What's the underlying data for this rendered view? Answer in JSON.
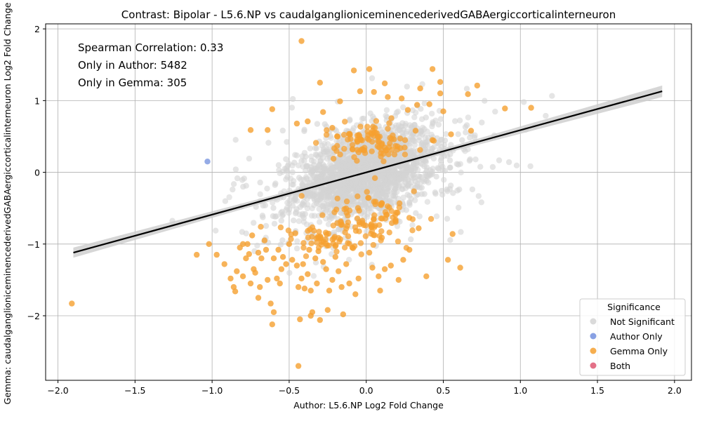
{
  "chart_data": {
    "type": "scatter",
    "title": "Contrast: Bipolar - L5.6.NP vs caudalganglioniceminencederivedGABAergiccorticalinterneuron",
    "xlabel": "Author: L5.6.NP Log2 Fold Change",
    "ylabel": "Gemma: caudalganglioniceminencederivedGABAergiccorticalinterneuron Log2 Fold Change",
    "xlim": [
      -2.08,
      2.11
    ],
    "ylim": [
      -2.9,
      2.07
    ],
    "x_ticks": [
      -2.0,
      -1.5,
      -1.0,
      -0.5,
      0.0,
      0.5,
      1.0,
      1.5,
      2.0
    ],
    "x_tick_labels": [
      "−2.0",
      "−1.5",
      "−1.0",
      "−0.5",
      "0.0",
      "0.5",
      "1.0",
      "1.5",
      "2.0"
    ],
    "y_ticks": [
      -2,
      -1,
      0,
      1,
      2
    ],
    "y_tick_labels": [
      "−2",
      "−1",
      "0",
      "1",
      "2"
    ],
    "grid": true,
    "annotations": [
      "Spearman Correlation: 0.33",
      "Only in Author: 5482",
      "Only in Gemma: 305"
    ],
    "legend": {
      "title": "Significance",
      "placement": "lower-right",
      "entries": [
        {
          "label": "Not Significant",
          "color": "#d3d3d3"
        },
        {
          "label": "Author Only",
          "color": "#7b96e0"
        },
        {
          "label": "Gemma Only",
          "color": "#f5a030"
        },
        {
          "label": "Both",
          "color": "#e0607a"
        }
      ]
    },
    "regression_line": {
      "x": [
        -1.9,
        1.92
      ],
      "y": [
        -1.12,
        1.13
      ],
      "color": "#000000",
      "band_color": "#cccccc"
    },
    "series": [
      {
        "name": "Author Only",
        "color": "#7b96e0",
        "points": [
          [
            -1.03,
            0.15
          ]
        ]
      },
      {
        "name": "Gemma Only",
        "color": "#f5a030",
        "points": [
          [
            -1.91,
            -1.83
          ],
          [
            -1.1,
            -1.15
          ],
          [
            -1.02,
            -1.0
          ],
          [
            -0.97,
            -1.15
          ],
          [
            -0.92,
            -1.28
          ],
          [
            -0.88,
            -1.48
          ],
          [
            -0.86,
            -1.6
          ],
          [
            -0.85,
            -1.66
          ],
          [
            -0.84,
            -1.38
          ],
          [
            -0.82,
            -1.05
          ],
          [
            -0.8,
            -1.0
          ],
          [
            -0.8,
            -1.45
          ],
          [
            -0.78,
            -1.2
          ],
          [
            -0.77,
            -1.0
          ],
          [
            -0.76,
            -1.14
          ],
          [
            -0.75,
            -1.55
          ],
          [
            -0.74,
            -0.88
          ],
          [
            -0.73,
            -1.35
          ],
          [
            -0.72,
            -1.4
          ],
          [
            -0.7,
            -1.12
          ],
          [
            -0.7,
            -1.75
          ],
          [
            -0.69,
            -1.6
          ],
          [
            -0.68,
            -1.2
          ],
          [
            -0.66,
            -0.95
          ],
          [
            -0.65,
            -1.08
          ],
          [
            -0.64,
            -1.5
          ],
          [
            -0.62,
            -1.83
          ],
          [
            -0.61,
            -2.12
          ],
          [
            -0.6,
            -1.95
          ],
          [
            -0.6,
            -1.2
          ],
          [
            -0.58,
            -1.48
          ],
          [
            -0.57,
            -1.08
          ],
          [
            -0.56,
            -1.55
          ],
          [
            -0.55,
            -1.35
          ],
          [
            -0.54,
            -1.18
          ],
          [
            -0.52,
            -1.28
          ],
          [
            -0.5,
            -1.0
          ],
          [
            -0.48,
            -1.22
          ],
          [
            -0.46,
            -0.85
          ],
          [
            -0.45,
            -1.3
          ],
          [
            -0.44,
            -1.6
          ],
          [
            -0.44,
            -2.7
          ],
          [
            -0.43,
            -2.05
          ],
          [
            -0.42,
            -1.48
          ],
          [
            -0.41,
            -1.28
          ],
          [
            -0.4,
            -1.62
          ],
          [
            -0.38,
            -1.42
          ],
          [
            -0.37,
            -1.08
          ],
          [
            -0.36,
            -1.65
          ],
          [
            -0.36,
            -2.0
          ],
          [
            -0.35,
            -1.95
          ],
          [
            -0.33,
            -1.2
          ],
          [
            -0.32,
            -1.55
          ],
          [
            -0.31,
            -1.1
          ],
          [
            -0.3,
            -2.06
          ],
          [
            -0.28,
            -1.25
          ],
          [
            -0.26,
            -1.35
          ],
          [
            -0.25,
            -1.92
          ],
          [
            -0.24,
            -1.65
          ],
          [
            -0.22,
            -1.5
          ],
          [
            -0.2,
            -1.18
          ],
          [
            -0.18,
            -1.38
          ],
          [
            -0.16,
            -1.6
          ],
          [
            -0.15,
            -1.98
          ],
          [
            -0.13,
            -1.28
          ],
          [
            -0.11,
            -1.55
          ],
          [
            -0.09,
            -1.05
          ],
          [
            -0.07,
            -1.7
          ],
          [
            -0.05,
            -1.48
          ],
          [
            0.02,
            -1.12
          ],
          [
            0.04,
            -1.33
          ],
          [
            0.08,
            -1.45
          ],
          [
            0.09,
            -1.65
          ],
          [
            0.12,
            -1.35
          ],
          [
            0.16,
            -1.3
          ],
          [
            0.21,
            -1.5
          ],
          [
            0.24,
            -1.22
          ],
          [
            0.28,
            -1.08
          ],
          [
            0.34,
            -0.78
          ],
          [
            0.39,
            -1.45
          ],
          [
            0.53,
            -1.22
          ],
          [
            0.56,
            -0.86
          ],
          [
            0.61,
            -1.33
          ],
          [
            -0.42,
            1.83
          ],
          [
            0.02,
            1.44
          ],
          [
            0.43,
            1.44
          ],
          [
            -0.08,
            1.42
          ],
          [
            -0.3,
            1.25
          ],
          [
            0.12,
            1.24
          ],
          [
            0.48,
            1.26
          ],
          [
            0.72,
            1.21
          ],
          [
            -0.04,
            1.13
          ],
          [
            0.05,
            1.12
          ],
          [
            0.35,
            1.17
          ],
          [
            0.66,
            1.09
          ],
          [
            0.23,
            1.03
          ],
          [
            0.9,
            0.89
          ],
          [
            1.07,
            0.9
          ],
          [
            0.48,
            1.1
          ],
          [
            -0.17,
            0.99
          ],
          [
            0.14,
            1.05
          ],
          [
            -0.61,
            0.88
          ],
          [
            -0.28,
            0.84
          ],
          [
            -0.75,
            0.59
          ],
          [
            -0.64,
            0.59
          ],
          [
            0.27,
            0.87
          ],
          [
            0.41,
            0.95
          ],
          [
            0.55,
            0.53
          ],
          [
            0.68,
            0.58
          ],
          [
            0.5,
            0.85
          ],
          [
            0.43,
            0.45
          ],
          [
            -0.45,
            0.68
          ],
          [
            -0.38,
            0.71
          ],
          [
            -0.22,
            0.62
          ],
          [
            0.32,
            0.58
          ],
          [
            0.18,
            0.46
          ],
          [
            0.33,
            0.94
          ]
        ]
      },
      {
        "name": "Both",
        "color": "#e0607a",
        "points": []
      }
    ]
  }
}
